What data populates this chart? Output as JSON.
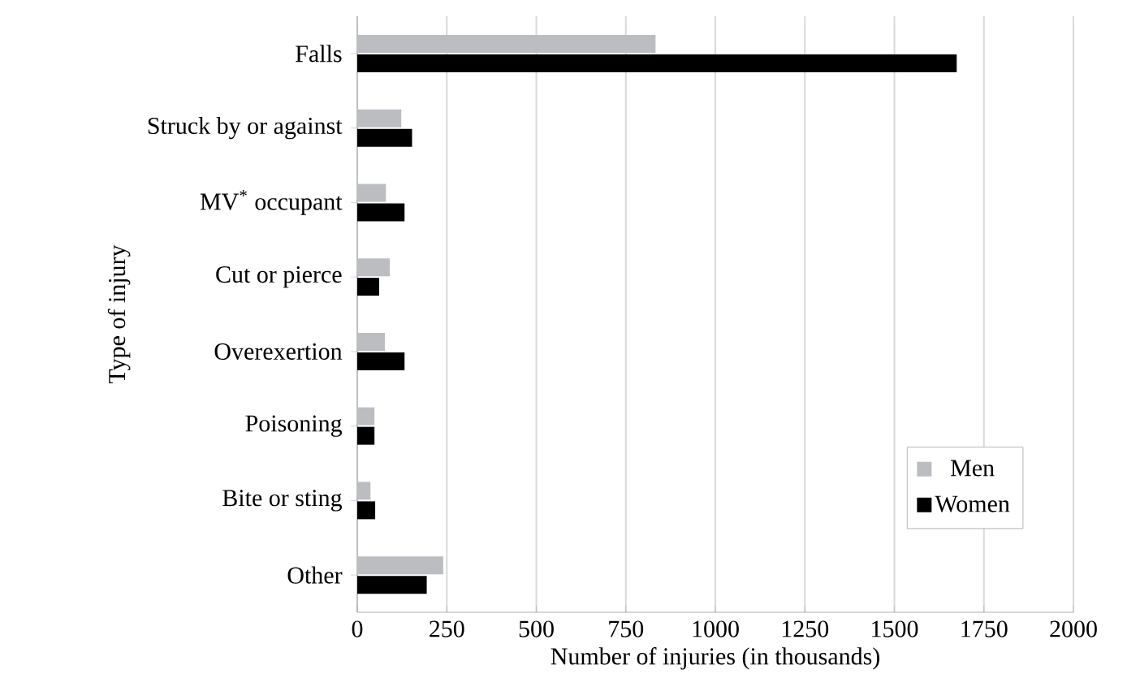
{
  "chart_data": {
    "type": "bar",
    "orientation": "horizontal",
    "xlabel": "Number of injuries (in thousands)",
    "ylabel": "Type of injury",
    "categories": [
      "Falls",
      "Struck by or against",
      "MV$^{*}$ occupant",
      "Cut or pierce",
      "Overexertion",
      "Poisoning",
      "Bite or sting",
      "Other"
    ],
    "series": [
      {
        "name": "Men",
        "color": "#bcbdc0",
        "values": [
          833,
          123,
          80,
          91,
          77,
          48,
          37,
          240
        ]
      },
      {
        "name": "Women",
        "color": "#000000",
        "values": [
          1674,
          153,
          132,
          61,
          132,
          48,
          50,
          194
        ]
      }
    ],
    "xlim": [
      0,
      2000
    ],
    "xticks": [
      0,
      250,
      500,
      750,
      1000,
      1250,
      1500,
      1750,
      2000
    ],
    "grid": "x",
    "legend": "bottom right"
  }
}
